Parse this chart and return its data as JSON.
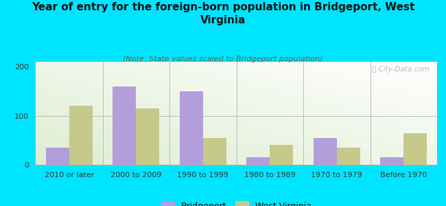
{
  "title": "Year of entry for the foreign-born population in Bridgeport, West\nVirginia",
  "subtitle": "(Note: State values scaled to Bridgeport population)",
  "categories": [
    "2010 or later",
    "2000 to 2009",
    "1990 to 1999",
    "1980 to 1989",
    "1970 to 1979",
    "Before 1970"
  ],
  "bridgeport": [
    35,
    160,
    150,
    15,
    55,
    15
  ],
  "west_virginia": [
    120,
    115,
    55,
    40,
    35,
    65
  ],
  "bridgeport_color": "#b39ddb",
  "wv_color": "#c5c98a",
  "background_outer": "#00e5ff",
  "ylim": [
    0,
    210
  ],
  "yticks": [
    0,
    100,
    200
  ],
  "bar_width": 0.35,
  "watermark": "ⓘ City-Data.com",
  "legend_bridgeport": "Bridgeport",
  "legend_wv": "West Virginia",
  "title_fontsize": 11,
  "subtitle_fontsize": 8,
  "tick_fontsize": 8,
  "legend_fontsize": 9
}
